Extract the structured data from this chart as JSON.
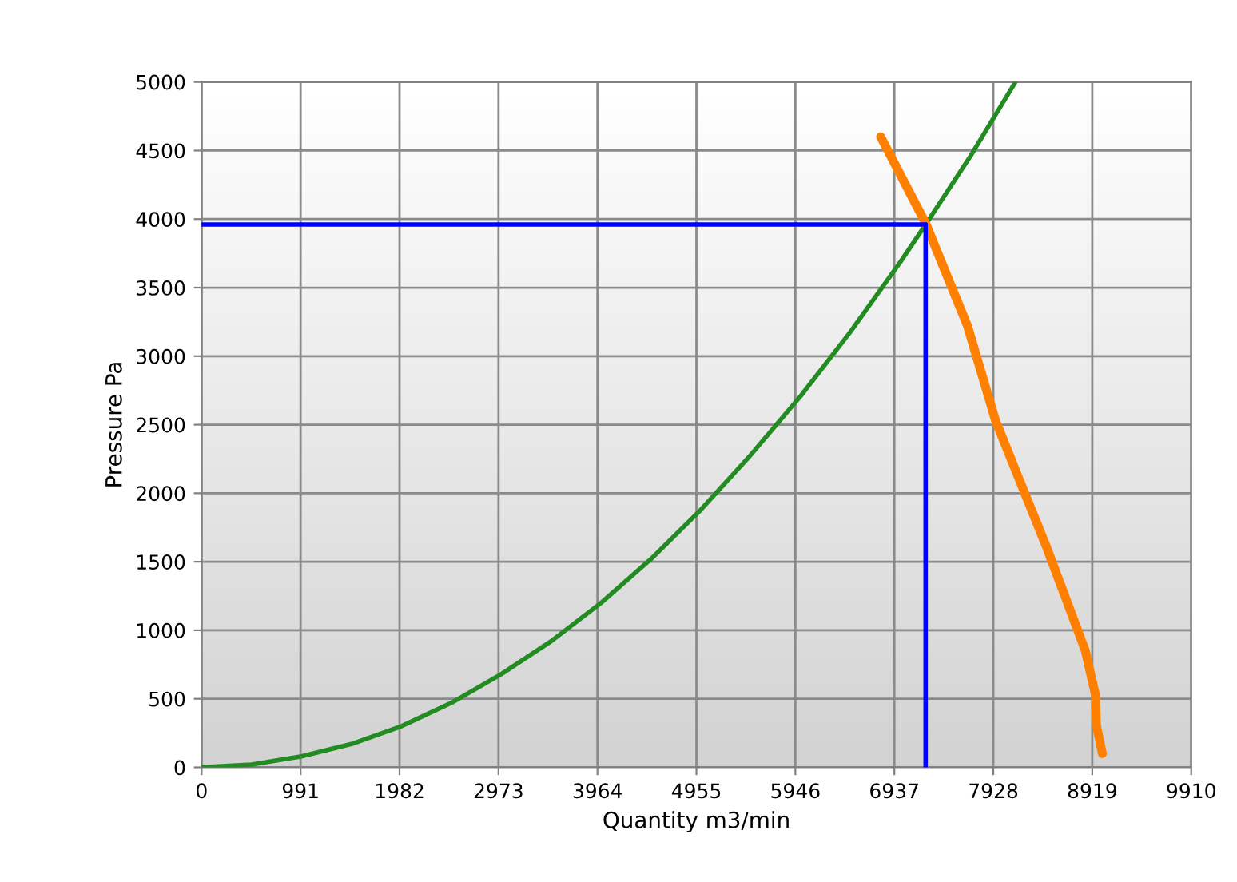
{
  "chart_data": {
    "type": "line",
    "xlabel": "Quantity m3/min",
    "ylabel": "Pressure Pa",
    "series": [
      {
        "color": "#228b22",
        "x": [
          0,
          500,
          1000,
          1500,
          2000,
          2500,
          3000,
          3500,
          4000,
          4500,
          5000,
          5500,
          6000,
          6500,
          7000,
          7250,
          7700,
          8150
        ],
        "values": [
          0,
          20,
          80,
          170,
          300,
          470,
          680,
          920,
          1200,
          1520,
          1880,
          2280,
          2710,
          3180,
          3690,
          3960,
          4460,
          5000
        ]
      },
      {
        "color": "#ff8000",
        "x": [
          6800,
          7250,
          7670,
          7950,
          8470,
          8850,
          8950,
          8960,
          9020
        ],
        "values": [
          4600,
          3970,
          3220,
          2530,
          1590,
          850,
          530,
          310,
          100
        ]
      },
      {
        "color": "#0000ff",
        "x": [
          0,
          7250
        ],
        "values": [
          3960,
          3960
        ]
      },
      {
        "color": "#0000ff",
        "x": [
          7250,
          7250
        ],
        "values": [
          0,
          3960
        ]
      }
    ],
    "xlim": [
      0,
      9910
    ],
    "xticks": [
      0,
      991,
      1982,
      2973,
      3964,
      4955,
      5946,
      6937,
      7928,
      8919,
      9910
    ],
    "ylim": [
      0,
      5000
    ],
    "yticks": [
      0,
      500,
      1000,
      1500,
      2000,
      2500,
      3000,
      3500,
      4000,
      4500,
      5000
    ],
    "grid": true
  }
}
